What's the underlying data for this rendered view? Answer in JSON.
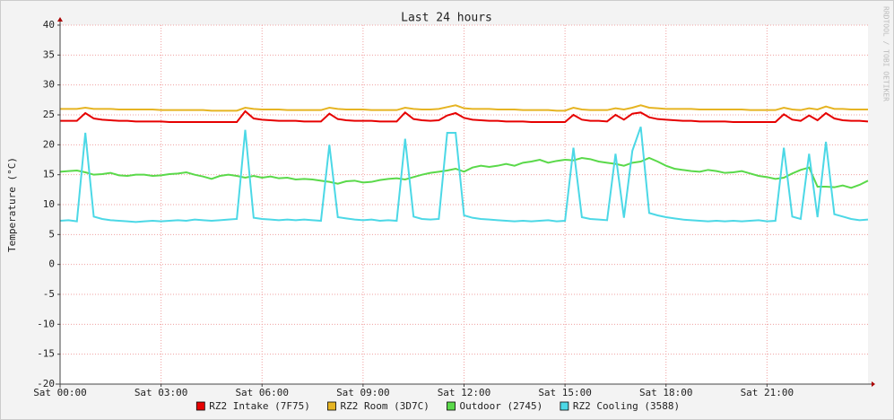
{
  "chart_data": {
    "type": "line",
    "title": "Last 24 hours",
    "y_label": "Temperature (°C)",
    "watermark": "RRDTOOL / TOBI OETIKER",
    "x": [
      0,
      0.25,
      0.5,
      0.75,
      1,
      1.25,
      1.5,
      1.75,
      2,
      2.25,
      2.5,
      2.75,
      3,
      3.25,
      3.5,
      3.75,
      4,
      4.25,
      4.5,
      4.75,
      5,
      5.25,
      5.5,
      5.75,
      6,
      6.25,
      6.5,
      6.75,
      7,
      7.25,
      7.5,
      7.75,
      8,
      8.25,
      8.5,
      8.75,
      9,
      9.25,
      9.5,
      9.75,
      10,
      10.25,
      10.5,
      10.75,
      11,
      11.25,
      11.5,
      11.75,
      12,
      12.25,
      12.5,
      12.75,
      13,
      13.25,
      13.5,
      13.75,
      14,
      14.25,
      14.5,
      14.75,
      15,
      15.25,
      15.5,
      15.75,
      16,
      16.25,
      16.5,
      16.75,
      17,
      17.25,
      17.5,
      17.75,
      18,
      18.25,
      18.5,
      18.75,
      19,
      19.25,
      19.5,
      19.75,
      20,
      20.25,
      20.5,
      20.75,
      21,
      21.25,
      21.5,
      21.75,
      22,
      22.25,
      22.5,
      22.75,
      23,
      23.25,
      23.5,
      23.75,
      24
    ],
    "xlim": [
      0,
      24
    ],
    "xticks": [
      {
        "value": 0,
        "label": "Sat 00:00"
      },
      {
        "value": 3,
        "label": "Sat 03:00"
      },
      {
        "value": 6,
        "label": "Sat 06:00"
      },
      {
        "value": 9,
        "label": "Sat 09:00"
      },
      {
        "value": 12,
        "label": "Sat 12:00"
      },
      {
        "value": 15,
        "label": "Sat 15:00"
      },
      {
        "value": 18,
        "label": "Sat 18:00"
      },
      {
        "value": 21,
        "label": "Sat 21:00"
      }
    ],
    "ylim": [
      -20,
      40
    ],
    "yticks": [
      -20,
      -15,
      -10,
      -5,
      0,
      5,
      10,
      15,
      20,
      25,
      30,
      35,
      40
    ],
    "grid": true,
    "legend": "bottom",
    "series": [
      {
        "name": "RZ2 Intake (7F75)",
        "color": "#e60000",
        "values": [
          24.0,
          24.0,
          24.0,
          25.3,
          24.4,
          24.2,
          24.1,
          24.0,
          24.0,
          23.9,
          23.9,
          23.9,
          23.9,
          23.8,
          23.8,
          23.8,
          23.8,
          23.8,
          23.8,
          23.8,
          23.8,
          23.8,
          25.6,
          24.4,
          24.2,
          24.1,
          24.0,
          24.0,
          24.0,
          23.9,
          23.9,
          23.9,
          25.2,
          24.3,
          24.1,
          24.0,
          24.0,
          24.0,
          23.9,
          23.9,
          23.9,
          25.4,
          24.3,
          24.1,
          24.0,
          24.1,
          24.9,
          25.3,
          24.5,
          24.2,
          24.1,
          24.0,
          24.0,
          23.9,
          23.9,
          23.9,
          23.8,
          23.8,
          23.8,
          23.8,
          23.8,
          25.0,
          24.2,
          24.0,
          24.0,
          23.9,
          25.0,
          24.2,
          25.2,
          25.4,
          24.6,
          24.3,
          24.2,
          24.1,
          24.0,
          24.0,
          23.9,
          23.9,
          23.9,
          23.9,
          23.8,
          23.8,
          23.8,
          23.8,
          23.8,
          23.8,
          25.1,
          24.2,
          24.0,
          24.9,
          24.1,
          25.3,
          24.4,
          24.1,
          24.0,
          24.0,
          23.9
        ]
      },
      {
        "name": "RZ2 Room (3D7C)",
        "color": "#e6b422",
        "values": [
          26.0,
          26.0,
          26.0,
          26.2,
          26.0,
          26.0,
          26.0,
          25.9,
          25.9,
          25.9,
          25.9,
          25.9,
          25.8,
          25.8,
          25.8,
          25.8,
          25.8,
          25.8,
          25.7,
          25.7,
          25.7,
          25.7,
          26.2,
          26.0,
          25.9,
          25.9,
          25.9,
          25.8,
          25.8,
          25.8,
          25.8,
          25.8,
          26.2,
          26.0,
          25.9,
          25.9,
          25.9,
          25.8,
          25.8,
          25.8,
          25.8,
          26.2,
          26.0,
          25.9,
          25.9,
          26.0,
          26.3,
          26.6,
          26.1,
          26.0,
          26.0,
          26.0,
          25.9,
          25.9,
          25.9,
          25.8,
          25.8,
          25.8,
          25.8,
          25.7,
          25.7,
          26.2,
          25.9,
          25.8,
          25.8,
          25.8,
          26.1,
          25.9,
          26.2,
          26.6,
          26.2,
          26.1,
          26.0,
          26.0,
          26.0,
          26.0,
          25.9,
          25.9,
          25.9,
          25.9,
          25.9,
          25.9,
          25.8,
          25.8,
          25.8,
          25.8,
          26.2,
          25.9,
          25.8,
          26.1,
          25.9,
          26.4,
          26.0,
          26.0,
          25.9,
          25.9,
          25.9
        ]
      },
      {
        "name": "Outdoor (2745)",
        "color": "#5ad94a",
        "values": [
          15.5,
          15.6,
          15.7,
          15.4,
          15.0,
          15.1,
          15.3,
          14.9,
          14.8,
          15.0,
          15.0,
          14.8,
          14.9,
          15.1,
          15.2,
          15.4,
          15.0,
          14.7,
          14.3,
          14.8,
          15.0,
          14.8,
          14.5,
          14.8,
          14.5,
          14.7,
          14.4,
          14.5,
          14.2,
          14.3,
          14.2,
          14.0,
          13.8,
          13.5,
          13.9,
          14.0,
          13.7,
          13.8,
          14.1,
          14.3,
          14.4,
          14.2,
          14.6,
          15.0,
          15.3,
          15.5,
          15.7,
          16.0,
          15.5,
          16.2,
          16.5,
          16.3,
          16.5,
          16.8,
          16.5,
          17.0,
          17.2,
          17.5,
          17.0,
          17.3,
          17.5,
          17.4,
          17.8,
          17.6,
          17.2,
          17.0,
          16.8,
          16.5,
          17.0,
          17.2,
          17.8,
          17.2,
          16.5,
          16.0,
          15.8,
          15.6,
          15.5,
          15.8,
          15.6,
          15.3,
          15.4,
          15.6,
          15.2,
          14.8,
          14.6,
          14.3,
          14.5,
          15.2,
          15.8,
          16.2,
          13.0,
          13.0,
          12.9,
          13.2,
          12.8,
          13.3,
          14.0
        ]
      },
      {
        "name": "RZ2 Cooling (3588)",
        "color": "#4cd8e6",
        "values": [
          7.3,
          7.4,
          7.2,
          22,
          8.0,
          7.6,
          7.4,
          7.3,
          7.2,
          7.1,
          7.2,
          7.3,
          7.2,
          7.3,
          7.4,
          7.3,
          7.5,
          7.4,
          7.3,
          7.4,
          7.5,
          7.6,
          22.5,
          7.8,
          7.6,
          7.5,
          7.4,
          7.5,
          7.4,
          7.5,
          7.4,
          7.3,
          20,
          7.9,
          7.7,
          7.5,
          7.4,
          7.5,
          7.3,
          7.4,
          7.3,
          21,
          8.0,
          7.6,
          7.5,
          7.6,
          22,
          22,
          8.2,
          7.8,
          7.6,
          7.5,
          7.4,
          7.3,
          7.2,
          7.3,
          7.2,
          7.3,
          7.4,
          7.2,
          7.3,
          19.5,
          7.9,
          7.6,
          7.5,
          7.4,
          18.5,
          7.8,
          19,
          23,
          8.6,
          8.2,
          7.9,
          7.7,
          7.5,
          7.4,
          7.3,
          7.2,
          7.3,
          7.2,
          7.3,
          7.2,
          7.3,
          7.4,
          7.2,
          7.3,
          19.5,
          8.0,
          7.6,
          18.5,
          7.9,
          20.5,
          8.4,
          8.0,
          7.6,
          7.4,
          7.5
        ]
      }
    ]
  }
}
